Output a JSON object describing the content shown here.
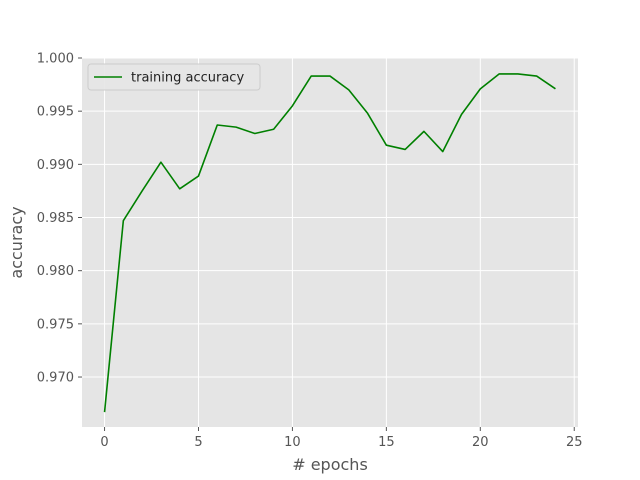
{
  "chart_data": {
    "type": "line",
    "title": "",
    "xlabel": "# epochs",
    "ylabel": "accuracy",
    "xlim": [
      -1.2,
      25.2
    ],
    "ylim": [
      0.9653,
      1.0
    ],
    "xticks": [
      0,
      5,
      10,
      15,
      20,
      25
    ],
    "yticks": [
      0.97,
      0.975,
      0.98,
      0.985,
      0.99,
      0.995,
      1.0
    ],
    "xtick_labels": [
      "0",
      "5",
      "10",
      "15",
      "20",
      "25"
    ],
    "ytick_labels": [
      "0.970",
      "0.975",
      "0.980",
      "0.985",
      "0.990",
      "0.995",
      "1.000"
    ],
    "grid": true,
    "legend_position": "top-left",
    "colors": {
      "background": "#e5e5e5",
      "grid": "#ffffff",
      "series": "#008000"
    },
    "series": [
      {
        "name": "training accuracy",
        "x": [
          0,
          1,
          2,
          3,
          4,
          5,
          6,
          7,
          8,
          9,
          10,
          11,
          12,
          13,
          14,
          15,
          16,
          17,
          18,
          19,
          20,
          21,
          22,
          23,
          24
        ],
        "y": [
          0.9667,
          0.9847,
          0.9875,
          0.9902,
          0.9877,
          0.9889,
          0.9937,
          0.9935,
          0.9929,
          0.9933,
          0.9955,
          0.9983,
          0.9983,
          0.997,
          0.9948,
          0.9918,
          0.9914,
          0.9931,
          0.9912,
          0.9947,
          0.9971,
          0.9985,
          0.9985,
          0.9983,
          0.9971
        ]
      }
    ]
  }
}
